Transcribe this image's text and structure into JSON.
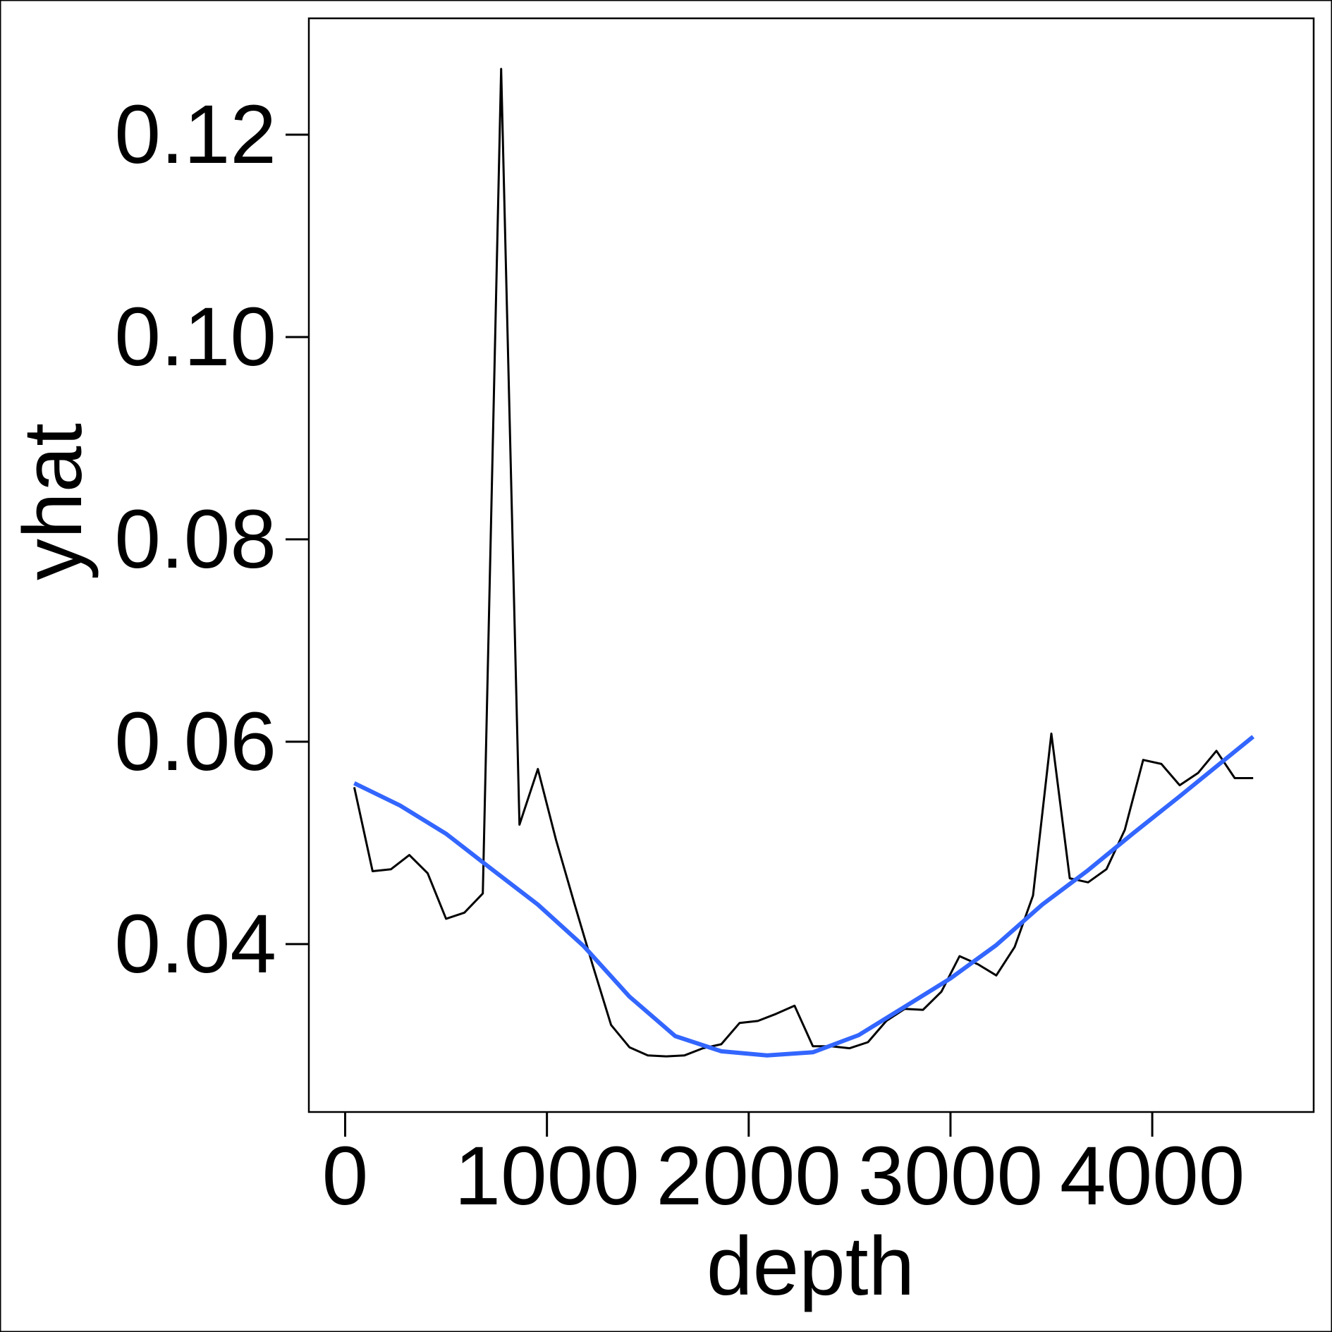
{
  "chart_data": {
    "type": "line",
    "title": "",
    "xlabel": "depth",
    "ylabel": "yhat",
    "xlim": [
      -180,
      4800
    ],
    "ylim": [
      0.0234,
      0.1315
    ],
    "grid": false,
    "x_ticks": [
      0,
      1000,
      2000,
      3000,
      4000
    ],
    "x_tick_labels": [
      "0",
      "1000",
      "2000",
      "3000",
      "4000"
    ],
    "y_ticks": [
      0.04,
      0.06,
      0.08,
      0.1,
      0.12
    ],
    "y_tick_labels": [
      "0.04",
      "0.06",
      "0.08",
      "0.10",
      "0.12"
    ],
    "series": [
      {
        "name": "",
        "color": "#000000",
        "x": [
          45,
          136,
          227,
          318,
          409,
          500,
          591,
          682,
          773,
          864,
          955,
          1045,
          1136,
          1227,
          1318,
          1409,
          1500,
          1591,
          1682,
          1773,
          1864,
          1955,
          2045,
          2136,
          2227,
          2318,
          2409,
          2500,
          2591,
          2682,
          2773,
          2864,
          2955,
          3045,
          3136,
          3227,
          3318,
          3409,
          3500,
          3591,
          3682,
          3773,
          3864,
          3955,
          4045,
          4136,
          4227,
          4318,
          4409,
          4500
        ],
        "y": [
          0.0555,
          0.0472,
          0.0474,
          0.0488,
          0.047,
          0.0425,
          0.0431,
          0.045,
          0.1265,
          0.0518,
          0.0573,
          0.0503,
          0.044,
          0.0379,
          0.032,
          0.0298,
          0.029,
          0.0289,
          0.029,
          0.0297,
          0.0301,
          0.0322,
          0.0324,
          0.0331,
          0.0339,
          0.0299,
          0.0299,
          0.0297,
          0.0303,
          0.0324,
          0.0336,
          0.0335,
          0.0353,
          0.0388,
          0.038,
          0.0369,
          0.0397,
          0.0448,
          0.0608,
          0.0465,
          0.0461,
          0.0474,
          0.0513,
          0.0582,
          0.0578,
          0.0557,
          0.0569,
          0.0591,
          0.0564,
          0.0564
        ]
      },
      {
        "name": "",
        "color": "#3366FF",
        "x": [
          45,
          272,
          500,
          727,
          955,
          1182,
          1409,
          1636,
          1864,
          2091,
          2318,
          2545,
          2773,
          3000,
          3227,
          3455,
          3682,
          3909,
          4136,
          4364,
          4500
        ],
        "y": [
          0.0559,
          0.0537,
          0.0509,
          0.0474,
          0.0439,
          0.0398,
          0.0348,
          0.0309,
          0.0294,
          0.029,
          0.0293,
          0.031,
          0.0338,
          0.0366,
          0.0399,
          0.0439,
          0.0473,
          0.051,
          0.0546,
          0.0583,
          0.0605
        ]
      }
    ]
  }
}
